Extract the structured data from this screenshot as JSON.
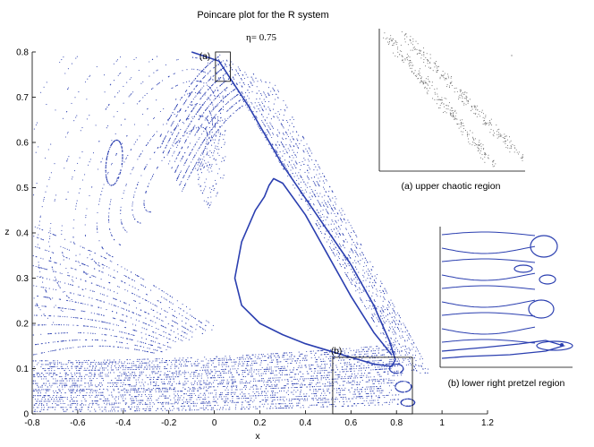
{
  "chart_data": {
    "type": "scatter",
    "title": "Poincare plot for the R system",
    "subtitle": "η= 0.75",
    "xlabel": "x",
    "ylabel": "z",
    "xlim": [
      -0.8,
      1.2
    ],
    "ylim": [
      0,
      0.8
    ],
    "xticks": [
      "-0.8",
      "-0.6",
      "-0.4",
      "-0.2",
      "0",
      "0.2",
      "0.4",
      "0.6",
      "0.8",
      "1",
      "1.2"
    ],
    "yticks": [
      "0",
      "0.1",
      "0.2",
      "0.3",
      "0.4",
      "0.5",
      "0.6",
      "0.7",
      "0.8"
    ],
    "grid": false,
    "point_color": "#2b3fb0",
    "separatrix": {
      "x": [
        -0.1,
        0.02,
        0.15,
        0.3,
        0.45,
        0.6,
        0.7,
        0.77,
        0.795,
        0.78,
        0.7,
        0.6,
        0.5,
        0.4,
        0.3,
        0.2,
        0.12,
        0.09,
        0.12,
        0.18,
        0.22,
        0.24,
        0.26,
        0.3,
        0.4,
        0.5,
        0.6,
        0.7,
        0.78
      ],
      "z": [
        0.88,
        0.78,
        0.68,
        0.55,
        0.44,
        0.33,
        0.24,
        0.16,
        0.12,
        0.105,
        0.11,
        0.125,
        0.14,
        0.155,
        0.175,
        0.2,
        0.24,
        0.3,
        0.38,
        0.45,
        0.48,
        0.505,
        0.52,
        0.51,
        0.44,
        0.35,
        0.26,
        0.18,
        0.13
      ]
    },
    "annotations": [
      {
        "label": "(a)",
        "box_x": [
          0.005,
          0.07
        ],
        "box_z": [
          0.735,
          0.8
        ]
      },
      {
        "label": "(b)",
        "box_x": [
          0.52,
          0.87
        ],
        "box_z": [
          0,
          0.125
        ]
      }
    ],
    "insets": [
      {
        "label": "(a)",
        "caption": "(a) upper chaotic region"
      },
      {
        "label": "(b)",
        "caption": "(b) lower right pretzel region"
      }
    ]
  }
}
